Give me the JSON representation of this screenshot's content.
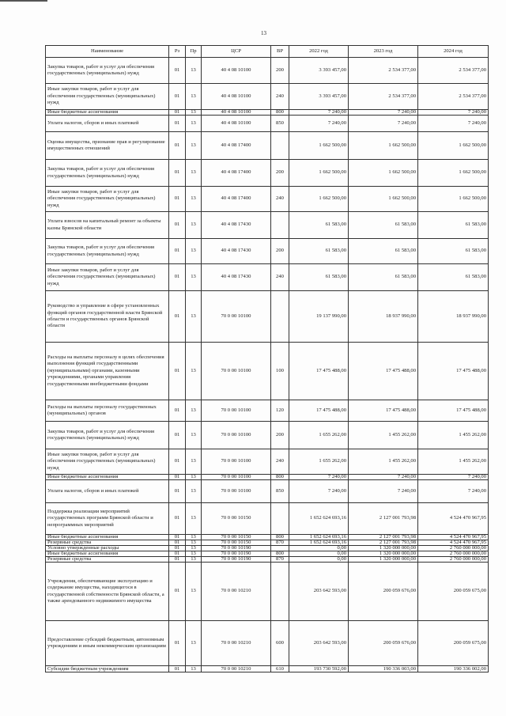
{
  "page_number": "13",
  "columns": [
    "Наименование",
    "Рз",
    "Пр",
    "ЦСР",
    "ВР",
    "2022 год",
    "2023 год",
    "2024 год"
  ],
  "rows": [
    {
      "name": "Закупка товаров, работ и услуг для обеспечения государственных (муниципальных) нужд",
      "rz": "01",
      "pr": "13",
      "csr": "40 4 08 10100",
      "vr": "200",
      "y2022": "3 393 457,00",
      "y2023": "2 534 377,00",
      "y2024": "2 534 377,00"
    },
    {
      "name": "Иные закупки товаров, работ и услуг для обеспечения государственных (муниципальных) нужд",
      "rz": "01",
      "pr": "13",
      "csr": "40 4 08 10100",
      "vr": "240",
      "y2022": "3 393 457,00",
      "y2023": "2 534 377,00",
      "y2024": "2 534 377,00"
    },
    {
      "name": "Иные бюджетные ассигнования",
      "rz": "01",
      "pr": "13",
      "csr": "40 4 08 10100",
      "vr": "800",
      "y2022": "7 240,00",
      "y2023": "7 240,00",
      "y2024": "7 240,00"
    },
    {
      "name": "Уплата налогов, сборов и иных платежей",
      "rz": "01",
      "pr": "13",
      "csr": "40 4 08 10100",
      "vr": "850",
      "y2022": "7 240,00",
      "y2023": "7 240,00",
      "y2024": "7 240,00"
    },
    {
      "name": "Оценка имущества, признание прав и регулирование имущественных отношений",
      "rz": "01",
      "pr": "13",
      "csr": "40 4 08 17400",
      "vr": "",
      "y2022": "1 662 500,00",
      "y2023": "1 662 500,00",
      "y2024": "1 662 500,00"
    },
    {
      "name": "Закупка товаров, работ и услуг для обеспечения государственных (муниципальных) нужд",
      "rz": "01",
      "pr": "13",
      "csr": "40 4 08 17400",
      "vr": "200",
      "y2022": "1 662 500,00",
      "y2023": "1 662 500,00",
      "y2024": "1 662 500,00"
    },
    {
      "name": "Иные закупки товаров, работ и услуг для обеспечения государственных (муниципальных) нужд",
      "rz": "01",
      "pr": "13",
      "csr": "40 4 08 17400",
      "vr": "240",
      "y2022": "1 662 500,00",
      "y2023": "1 662 500,00",
      "y2024": "1 662 500,00"
    },
    {
      "name": "Уплата взносов на капитальный ремонт за объекты казны Брянской области",
      "rz": "01",
      "pr": "13",
      "csr": "40 4 08 17430",
      "vr": "",
      "y2022": "61 583,00",
      "y2023": "61 583,00",
      "y2024": "61 583,00"
    },
    {
      "name": "Закупка товаров, работ и услуг для обеспечения государственных (муниципальных) нужд",
      "rz": "01",
      "pr": "13",
      "csr": "40 4 08 17430",
      "vr": "200",
      "y2022": "61 583,00",
      "y2023": "61 583,00",
      "y2024": "61 583,00"
    },
    {
      "name": "Иные закупки товаров, работ и услуг для обеспечения государственных (муниципальных) нужд",
      "rz": "01",
      "pr": "13",
      "csr": "40 4 08 17430",
      "vr": "240",
      "y2022": "61 583,00",
      "y2023": "61 583,00",
      "y2024": "61 583,00"
    },
    {
      "name": "Руководство и управление в сфере установленных функций органов государственной власти Брянской области и государственных органов Брянской области",
      "rz": "01",
      "pr": "13",
      "csr": "70 0 00 10100",
      "vr": "",
      "y2022": "19 137 990,00",
      "y2023": "18 937 990,00",
      "y2024": "18 937 990,00"
    },
    {
      "name": "Расходы на выплаты персоналу в целях обеспечения выполнения функций государственными (муниципальными) органами, казенными учреждениями, органами управления государственными внебюджетными фондами",
      "rz": "01",
      "pr": "13",
      "csr": "70 0 00 10100",
      "vr": "100",
      "y2022": "17 475 488,00",
      "y2023": "17 475 488,00",
      "y2024": "17 475 488,00"
    },
    {
      "name": "Расходы на выплаты персоналу государственных (муниципальных) органов",
      "rz": "01",
      "pr": "13",
      "csr": "70 0 00 10100",
      "vr": "120",
      "y2022": "17 475 488,00",
      "y2023": "17 475 488,00",
      "y2024": "17 475 488,00"
    },
    {
      "name": "Закупка товаров, работ и услуг для обеспечения государственных (муниципальных) нужд",
      "rz": "01",
      "pr": "13",
      "csr": "70 0 00 10100",
      "vr": "200",
      "y2022": "1 655 262,00",
      "y2023": "1 455 262,00",
      "y2024": "1 455 262,00"
    },
    {
      "name": "Иные закупки товаров, работ и услуг для обеспечения государственных (муниципальных) нужд",
      "rz": "01",
      "pr": "13",
      "csr": "70 0 00 10100",
      "vr": "240",
      "y2022": "1 655 262,00",
      "y2023": "1 455 262,00",
      "y2024": "1 455 262,00"
    },
    {
      "name": "Иные бюджетные ассигнования",
      "rz": "01",
      "pr": "13",
      "csr": "70 0 00 10100",
      "vr": "800",
      "y2022": "7 240,00",
      "y2023": "7 240,00",
      "y2024": "7 240,00"
    },
    {
      "name": "Уплата налогов, сборов и иных платежей",
      "rz": "01",
      "pr": "13",
      "csr": "70 0 00 10100",
      "vr": "850",
      "y2022": "7 240,00",
      "y2023": "7 240,00",
      "y2024": "7 240,00"
    },
    {
      "name": "Поддержка реализации мероприятий государственных программ Брянской области и непрограммных мероприятий",
      "rz": "01",
      "pr": "13",
      "csr": "70 0 00 10150",
      "vr": "",
      "y2022": "1 652 624 693,16",
      "y2023": "2 127 001 793,98",
      "y2024": "4 524 470 967,95"
    },
    {
      "name": "Иные бюджетные ассигнования",
      "rz": "01",
      "pr": "13",
      "csr": "70 0 00 10150",
      "vr": "800",
      "y2022": "1 652 624 693,16",
      "y2023": "2 127 001 793,98",
      "y2024": "4 524 470 967,95"
    },
    {
      "name": "Резервные средства",
      "rz": "01",
      "pr": "13",
      "csr": "70 0 00 10150",
      "vr": "870",
      "y2022": "1 652 624 693,16",
      "y2023": "2 127 001 793,98",
      "y2024": "4 524 470 967,95"
    },
    {
      "name": "Условно утвержденные расходы",
      "rz": "01",
      "pr": "13",
      "csr": "70 0 00 10190",
      "vr": "",
      "y2022": "0,00",
      "y2023": "1 320 000 000,00",
      "y2024": "2 760 000 000,00"
    },
    {
      "name": "Иные бюджетные ассигнования",
      "rz": "01",
      "pr": "13",
      "csr": "70 0 00 10190",
      "vr": "800",
      "y2022": "0,00",
      "y2023": "1 320 000 000,00",
      "y2024": "2 760 000 000,00"
    },
    {
      "name": "Резервные средства",
      "rz": "01",
      "pr": "13",
      "csr": "70 0 00 10190",
      "vr": "870",
      "y2022": "0,00",
      "y2023": "1 320 000 000,00",
      "y2024": "2 760 000 000,00"
    },
    {
      "name": "Учреждения, обеспечивающие эксплуатацию и содержание имущества, находящегося в государственной собственности Брянской области, а также арендованного недвижимого имущества",
      "rz": "01",
      "pr": "13",
      "csr": "70 0 00 10210",
      "vr": "",
      "y2022": "203 642 593,00",
      "y2023": "200 059 676,00",
      "y2024": "200 059 675,00"
    },
    {
      "name": "Предоставление субсидий бюджетным, автономным учреждениям и иным некоммерческим организациям",
      "rz": "01",
      "pr": "13",
      "csr": "70 0 00 10210",
      "vr": "600",
      "y2022": "203 642 593,00",
      "y2023": "200 059 676,00",
      "y2024": "200 059 675,00"
    },
    {
      "name": "Субсидии бюджетным учреждениям",
      "rz": "01",
      "pr": "13",
      "csr": "70 0 00 10210",
      "vr": "610",
      "y2022": "193 730 592,00",
      "y2023": "190 336 003,00",
      "y2024": "190 336 002,00"
    }
  ]
}
